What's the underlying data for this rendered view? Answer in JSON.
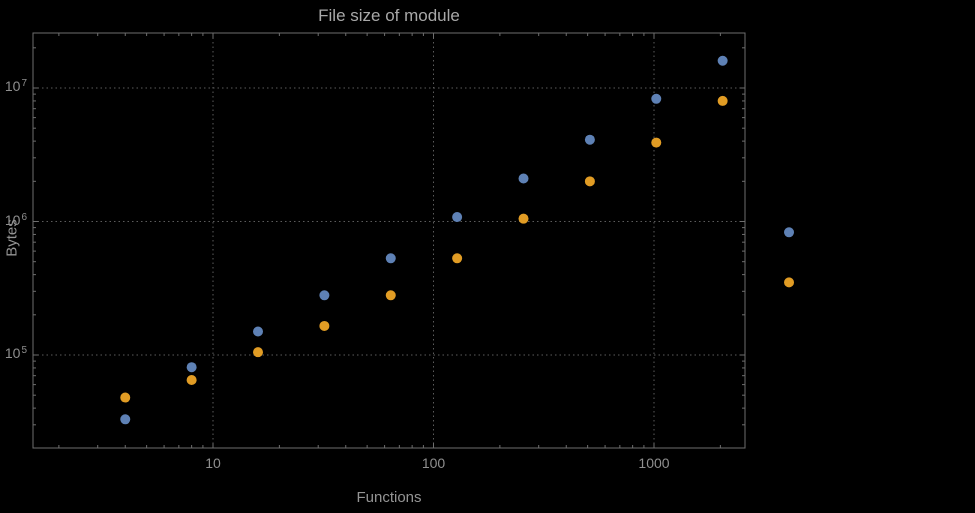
{
  "chart_data": {
    "type": "scatter",
    "title": "File size of module",
    "xlabel": "Functions",
    "ylabel": "Bytes",
    "x_scale": "log",
    "y_scale": "log",
    "x_ticks": [
      10,
      100,
      1000
    ],
    "y_ticks": [
      100000,
      1000000,
      10000000
    ],
    "xlim": [
      1.5,
      2600
    ],
    "ylim": [
      20000,
      26000000
    ],
    "grid": "dotted gray lines at major ticks",
    "legend": "none",
    "background": "#000000",
    "clip_points_to_frame": false,
    "x": [
      4,
      8,
      16,
      32,
      64,
      128,
      256,
      512,
      1024,
      2048,
      4096
    ],
    "series": [
      {
        "name": "blue",
        "color": "#5E81B5",
        "values": [
          33000,
          81000,
          150000,
          280000,
          530000,
          1080000,
          2100000,
          4100000,
          8300000,
          16000000,
          830000
        ]
      },
      {
        "name": "orange",
        "color": "#E19C24",
        "values": [
          48000,
          65000,
          105000,
          165000,
          280000,
          530000,
          1050000,
          2000000,
          3900000,
          8000000,
          350000
        ]
      }
    ]
  }
}
